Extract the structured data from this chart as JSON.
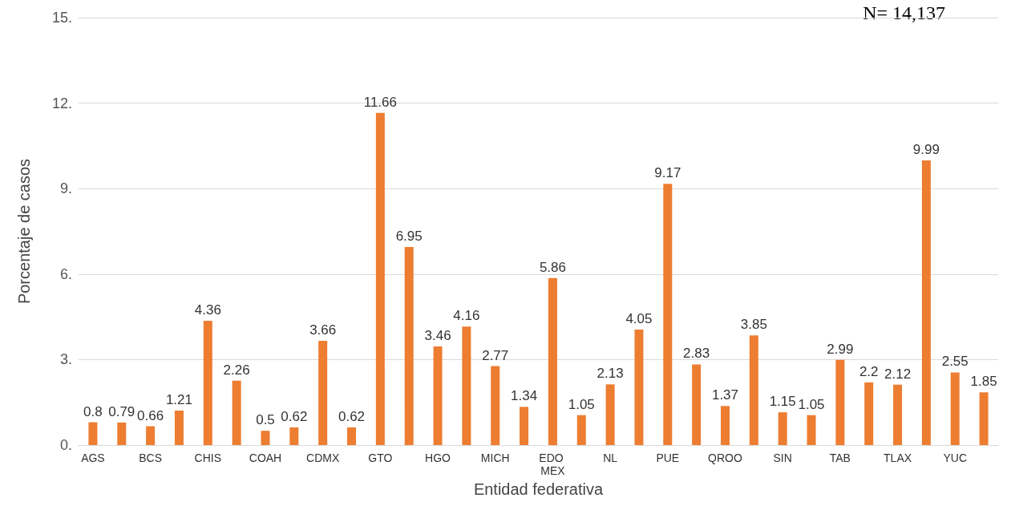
{
  "chart_data": {
    "type": "bar",
    "xlabel": "Entidad federativa",
    "ylabel": "Porcentaje de casos",
    "categories": [
      "AGS",
      null,
      "BCS",
      null,
      "CHIS",
      null,
      "COAH",
      null,
      "CDMX",
      null,
      "GTO",
      null,
      "HGO",
      null,
      "MICH",
      null,
      "EDO MEX",
      null,
      "NL",
      null,
      "PUE",
      null,
      "QROO",
      null,
      "SIN",
      null,
      "TAB",
      null,
      "TLAX",
      null,
      "YUC",
      null
    ],
    "values": [
      0.8,
      0.79,
      0.66,
      1.21,
      4.36,
      2.26,
      0.5,
      0.62,
      3.66,
      0.62,
      11.66,
      6.95,
      3.46,
      4.16,
      2.77,
      1.34,
      5.86,
      1.05,
      2.13,
      4.05,
      9.17,
      2.83,
      1.37,
      3.85,
      1.15,
      1.05,
      2.99,
      2.2,
      2.12,
      9.99,
      2.55,
      1.85
    ],
    "color": "#ed7d31",
    "data_labels": true,
    "ylim": [
      0,
      15
    ],
    "yticks": [
      {
        "value": 0,
        "label": "0."
      },
      {
        "value": 3,
        "label": "3."
      },
      {
        "value": 6,
        "label": "6."
      },
      {
        "value": 9,
        "label": "9."
      },
      {
        "value": 12,
        "label": "12."
      },
      {
        "value": 15,
        "label": "15."
      }
    ],
    "grid": "y",
    "annotations": [
      "N= 14,137"
    ]
  }
}
